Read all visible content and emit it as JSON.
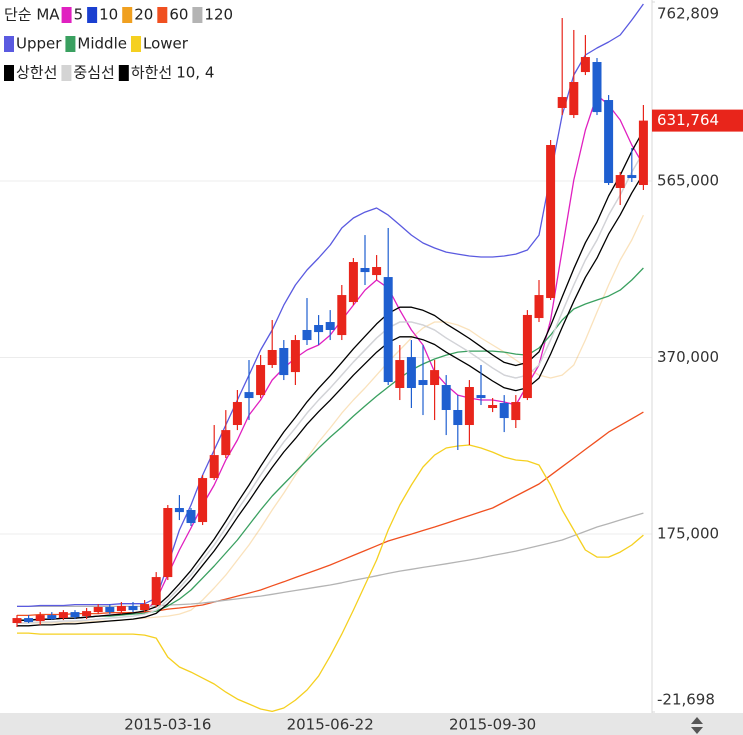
{
  "chart_data": {
    "type": "candlestick",
    "categories": [
      null,
      null,
      null,
      null,
      null,
      null,
      null,
      null,
      null,
      null,
      null,
      null,
      null,
      "2015-03-16",
      null,
      null,
      null,
      null,
      null,
      null,
      null,
      null,
      null,
      null,
      null,
      null,
      null,
      "2015-06-22",
      null,
      null,
      null,
      null,
      null,
      null,
      null,
      null,
      null,
      null,
      null,
      null,
      null,
      "2015-09-30",
      null,
      null,
      null,
      null,
      null,
      null,
      null,
      null,
      null,
      null,
      null,
      null,
      null
    ],
    "open": [
      76600,
      82100,
      78800,
      85400,
      82100,
      88700,
      84300,
      88700,
      94300,
      89800,
      95400,
      90900,
      96500,
      127400,
      203700,
      201500,
      188200,
      236800,
      262200,
      295400,
      331800,
      328500,
      361700,
      380500,
      353900,
      400400,
      405900,
      409200,
      394800,
      431300,
      468900,
      461100,
      458900,
      336300,
      370500,
      345100,
      339600,
      339600,
      312000,
      295400,
      328500,
      314200,
      319700,
      300900,
      325200,
      413600,
      435700,
      645700,
      637900,
      685400,
      696500,
      654500,
      557300,
      571600,
      560600
    ],
    "high": [
      85400,
      85400,
      88700,
      88700,
      90900,
      90900,
      93200,
      97600,
      97600,
      99800,
      99800,
      102000,
      132900,
      207000,
      218000,
      203700,
      240100,
      295400,
      311900,
      334100,
      367200,
      372700,
      411400,
      389300,
      394800,
      435700,
      416900,
      422400,
      450100,
      479900,
      505300,
      483200,
      513100,
      383800,
      389300,
      383800,
      367200,
      350600,
      328500,
      345100,
      361700,
      325200,
      328500,
      328500,
      422400,
      455600,
      610300,
      745100,
      731900,
      726300,
      700900,
      660000,
      575000,
      601500,
      649000
    ],
    "low": [
      72200,
      76600,
      74400,
      79900,
      79900,
      81000,
      81000,
      86500,
      86500,
      86500,
      88700,
      88700,
      94300,
      124100,
      190400,
      183800,
      184900,
      234600,
      258900,
      289800,
      300900,
      325200,
      358400,
      345100,
      339600,
      383800,
      383800,
      389300,
      389300,
      427900,
      450100,
      455600,
      339600,
      323000,
      314200,
      306400,
      300900,
      284300,
      267800,
      273300,
      317500,
      309700,
      287600,
      292100,
      323000,
      409200,
      433500,
      637900,
      634600,
      682100,
      637900,
      560600,
      538500,
      563900,
      555100
    ],
    "close": [
      82100,
      77700,
      85400,
      81000,
      88700,
      83200,
      89800,
      94300,
      88700,
      95400,
      90900,
      97600,
      127400,
      203700,
      199200,
      187100,
      236800,
      262200,
      289800,
      320800,
      325200,
      361700,
      378300,
      350600,
      389300,
      389300,
      398100,
      400400,
      439000,
      475500,
      464400,
      470000,
      342900,
      367200,
      336300,
      339600,
      356100,
      312000,
      295400,
      337400,
      325200,
      317500,
      303100,
      320800,
      417000,
      439000,
      604800,
      657800,
      674400,
      702000,
      641200,
      562800,
      571600,
      568300,
      631764
    ],
    "up_color": "#e8251b",
    "down_color": "#1f5fd0",
    "last_price": {
      "value": 631764,
      "label": "631,764"
    },
    "ylim": [
      -21698,
      762809
    ],
    "yticks": [
      {
        "value": -21698,
        "label": "-21,698"
      },
      {
        "value": 175000,
        "label": "175,000"
      },
      {
        "value": 370000,
        "label": "370,000"
      },
      {
        "value": 565000,
        "label": "565,000"
      },
      {
        "value": 762809,
        "label": "762,809"
      }
    ],
    "grid": true,
    "indicators": [
      {
        "name": "단순 MA",
        "series": [
          {
            "name": "5",
            "color": "#e020c0",
            "values": [
              79900,
              79900,
              81000,
              81000,
              82100,
              82100,
              83200,
              84300,
              85400,
              86500,
              87600,
              88700,
              102000,
              129600,
              157300,
              181600,
              207000,
              229100,
              256700,
              278800,
              306400,
              323000,
              345100,
              358400,
              369400,
              378300,
              383800,
              394800,
              411400,
              427900,
              444500,
              455600,
              446800,
              422400,
              400400,
              383800,
              354000,
              339600,
              328500,
              325200,
              323000,
              323000,
              320800,
              317500,
              339600,
              361700,
              411400,
              488800,
              566100,
              621400,
              660000,
              649000,
              632400,
              604800,
              582700
            ]
          },
          {
            "name": "10",
            "color": "#1a3fd0",
            "values": [
              76600,
              76600,
              77700,
              77700,
              78800,
              78800,
              79900,
              81000,
              82100,
              83200,
              84300,
              86500,
              90900,
              102000,
              115300,
              129600,
              146200,
              162800,
              181600,
              201500,
              220200,
              240100,
              258900,
              276600,
              292100,
              308600,
              323000,
              336300,
              350600,
              365000,
              378300,
              391500,
              402600,
              409200,
              409200,
              405900,
              400400,
              391500,
              383800,
              376000,
              367200,
              358400,
              350600,
              347300,
              350600,
              361700,
              389300,
              420200,
              450100,
              477700,
              499800,
              527400,
              549500,
              574900,
              597000
            ]
          },
          {
            "name": "20",
            "color": "#f0a020",
            "values": [
              76600,
              76600,
              76600,
              76600,
              76600,
              77700,
              77700,
              78800,
              78800,
              79900,
              81000,
              82100,
              83200,
              84300,
              86500,
              90900,
              102000,
              115300,
              129600,
              146200,
              162800,
              181600,
              201500,
              220200,
              240100,
              258900,
              276600,
              292100,
              308600,
              323000,
              336300,
              350600,
              365000,
              378300,
              391500,
              402600,
              409200,
              409200,
              405900,
              400400,
              391500,
              383800,
              376000,
              367200,
              358400,
              350600,
              347300,
              350600,
              361700,
              389300,
              420200,
              450100,
              477700,
              499800,
              527400
            ]
          },
          {
            "name": "60",
            "color": "#f05020",
            "values": [
              85000,
              85000,
              86000,
              86000,
              86000,
              87000,
              87000,
              87000,
              88000,
              88000,
              88000,
              89000,
              89800,
              92000,
              93200,
              94800,
              96500,
              99800,
              103100,
              106400,
              109700,
              113100,
              117700,
              122200,
              126900,
              131500,
              136000,
              140700,
              146000,
              151300,
              156600,
              161900,
              167200,
              171100,
              174900,
              178800,
              182700,
              186900,
              191100,
              195300,
              199500,
              203700,
              210300,
              217000,
              223600,
              230200,
              239800,
              249300,
              258900,
              268500,
              278000,
              287600,
              295000,
              302300,
              309700
            ]
          },
          {
            "name": "120",
            "color": "#b4b4b4",
            "values": [
              95000,
              95000,
              95000,
              95000,
              95000,
              95000,
              95000,
              95000,
              95000,
              95000,
              95000,
              95000,
              95400,
              96500,
              97000,
              97600,
              98700,
              100200,
              101800,
              103300,
              104900,
              106400,
              108400,
              110500,
              112500,
              114500,
              116600,
              118600,
              121100,
              123800,
              126300,
              128800,
              131500,
              134000,
              136000,
              138100,
              140100,
              142100,
              144200,
              146200,
              148600,
              151200,
              153600,
              156100,
              159100,
              162200,
              165200,
              168300,
              173100,
              177900,
              182700,
              186500,
              190400,
              194300,
              198100
            ]
          }
        ]
      },
      {
        "series": [
          {
            "name": "Upper",
            "color": "#5a5ae0",
            "values": [
              95000,
              95000,
              96000,
              96000,
              96000,
              97000,
              97000,
              97000,
              97000,
              98000,
              98000,
              98000,
              104200,
              140700,
              179400,
              207000,
              240100,
              267800,
              295400,
              323000,
              350600,
              378300,
              400400,
              427900,
              450100,
              466700,
              479900,
              494300,
              513100,
              524100,
              530700,
              535200,
              527400,
              516400,
              505300,
              496500,
              491000,
              486500,
              484300,
              482100,
              481000,
              481000,
              482100,
              484300,
              488800,
              505300,
              571600,
              637900,
              682100,
              704200,
              712000,
              718600,
              726300,
              742900,
              760600
            ]
          },
          {
            "name": "Middle",
            "color": "#3aa060",
            "values": [
              80000,
              80000,
              81000,
              81000,
              82100,
              82100,
              83200,
              84300,
              84300,
              85400,
              86500,
              87600,
              89800,
              95400,
              103100,
              113100,
              126300,
              139600,
              154000,
              168300,
              184900,
              201500,
              217000,
              230200,
              243400,
              256700,
              269800,
              282100,
              293200,
              305300,
              316400,
              327400,
              337400,
              347300,
              356200,
              362800,
              368300,
              372700,
              376000,
              377100,
              377100,
              377100,
              376000,
              373800,
              372700,
              380500,
              394800,
              411400,
              423600,
              429100,
              433500,
              437900,
              444500,
              455600,
              468900
            ]
          },
          {
            "name": "Lower",
            "color": "#f5d020",
            "values": [
              65500,
              65500,
              64400,
              64400,
              64400,
              64400,
              64400,
              64400,
              64400,
              64400,
              64400,
              63300,
              60000,
              39000,
              28000,
              22400,
              15800,
              9200,
              300,
              -7400,
              -12900,
              -18400,
              -21000,
              -17300,
              -8500,
              2600,
              18000,
              40100,
              64400,
              90900,
              118600,
              146200,
              179400,
              207000,
              229100,
              249000,
              262200,
              270000,
              272200,
              273300,
              270000,
              265500,
              260000,
              256700,
              255600,
              251200,
              229100,
              201500,
              179400,
              157300,
              149500,
              149500,
              155000,
              162800,
              173800
            ]
          }
        ]
      },
      {
        "series": [
          {
            "name": "상한선",
            "color": "#000000",
            "values": [
              79664,
              79664,
              80808,
              80808,
              81952,
              81952,
              83096,
              84240,
              85384,
              86528,
              87672,
              89960,
              94536,
              106080,
              119912,
              134784,
              152048,
              169312,
              188864,
              209560,
              229008,
              249704,
              269256,
              287664,
              303784,
              320944,
              335920,
              349752,
              364624,
              379600,
              393432,
              407160,
              418704,
              425568,
              425568,
              422136,
              416416,
              407160,
              399152,
              391040,
              381888,
              372736,
              364624,
              361192,
              364624,
              376168,
              404872,
              437008,
              468104,
              496808,
              519792,
              548496,
              571480,
              597896,
              620880
            ]
          },
          {
            "name": "중심선",
            "color": "#d4d4d4",
            "values": [
              76600,
              76600,
              77700,
              77700,
              78800,
              78800,
              79900,
              81000,
              82100,
              83200,
              84300,
              86500,
              90900,
              102000,
              115300,
              129600,
              146200,
              162800,
              181600,
              201500,
              220200,
              240100,
              258900,
              276600,
              292100,
              308600,
              323000,
              336300,
              350600,
              365000,
              378300,
              391500,
              402600,
              409200,
              409200,
              405900,
              400400,
              391500,
              383800,
              376000,
              367200,
              358400,
              350600,
              347300,
              350600,
              361700,
              389300,
              420200,
              450100,
              477700,
              499800,
              527400,
              549500,
              574900,
              597000
            ]
          },
          {
            "name": "하한선",
            "color": "#000000",
            "values": [
              73536,
              73536,
              74592,
              74592,
              75648,
              75648,
              76704,
              77760,
              78816,
              79872,
              80928,
              83040,
              87264,
              97920,
              110688,
              124416,
              140352,
              156288,
              174336,
              193440,
              211392,
              230496,
              248544,
              265536,
              280416,
              296256,
              310080,
              322848,
              336576,
              350400,
              363168,
              375840,
              386496,
              392832,
              392832,
              389664,
              384384,
              375840,
              368448,
              360960,
              352512,
              344064,
              336576,
              333408,
              336576,
              347232,
              373728,
              403392,
              432096,
              458592,
              479808,
              506304,
              527520,
              551904,
              573120
            ]
          }
        ],
        "params": "10, 4"
      }
    ]
  }
}
